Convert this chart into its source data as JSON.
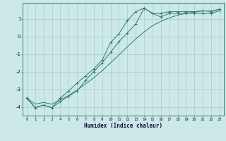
{
  "title": "",
  "xlabel": "Humidex (Indice chaleur)",
  "bg_color": "#cce8e8",
  "line_color": "#2e7d6e",
  "grid_color": "#aacccc",
  "xlim": [
    -0.5,
    23.5
  ],
  "ylim": [
    -4.5,
    1.9
  ],
  "yticks": [
    -4,
    -3,
    -2,
    -1,
    0,
    1
  ],
  "xticks": [
    0,
    1,
    2,
    3,
    4,
    5,
    6,
    7,
    8,
    9,
    10,
    11,
    12,
    13,
    14,
    15,
    16,
    17,
    18,
    19,
    20,
    21,
    22,
    23
  ],
  "series1_x": [
    0,
    1,
    2,
    3,
    4,
    5,
    6,
    7,
    8,
    9,
    10,
    11,
    12,
    13,
    14,
    15,
    16,
    17,
    18,
    19,
    20,
    21,
    22,
    23
  ],
  "series1_y": [
    -3.5,
    -4.05,
    -3.9,
    -4.05,
    -3.5,
    -3.1,
    -2.65,
    -2.25,
    -1.85,
    -1.35,
    -0.35,
    0.15,
    0.9,
    1.4,
    1.6,
    1.3,
    1.3,
    1.4,
    1.4,
    1.4,
    1.4,
    1.45,
    1.4,
    1.55
  ],
  "series2_x": [
    0,
    1,
    2,
    3,
    4,
    5,
    6,
    7,
    8,
    9,
    10,
    11,
    12,
    13,
    14,
    15,
    16,
    17,
    18,
    19,
    20,
    21,
    22,
    23
  ],
  "series2_y": [
    -3.5,
    -4.05,
    -3.9,
    -4.05,
    -3.7,
    -3.4,
    -3.1,
    -2.5,
    -2.0,
    -1.5,
    -0.9,
    -0.3,
    0.2,
    0.7,
    1.6,
    1.3,
    1.1,
    1.3,
    1.3,
    1.3,
    1.3,
    1.3,
    1.3,
    1.45
  ],
  "series3_x": [
    0,
    1,
    2,
    3,
    4,
    5,
    6,
    7,
    8,
    9,
    10,
    11,
    12,
    13,
    14,
    15,
    16,
    17,
    18,
    19,
    20,
    21,
    22,
    23
  ],
  "series3_y": [
    -3.5,
    -3.85,
    -3.75,
    -3.85,
    -3.6,
    -3.35,
    -3.05,
    -2.7,
    -2.35,
    -1.95,
    -1.5,
    -1.05,
    -0.6,
    -0.15,
    0.25,
    0.6,
    0.85,
    1.05,
    1.2,
    1.3,
    1.38,
    1.43,
    1.45,
    1.52
  ]
}
